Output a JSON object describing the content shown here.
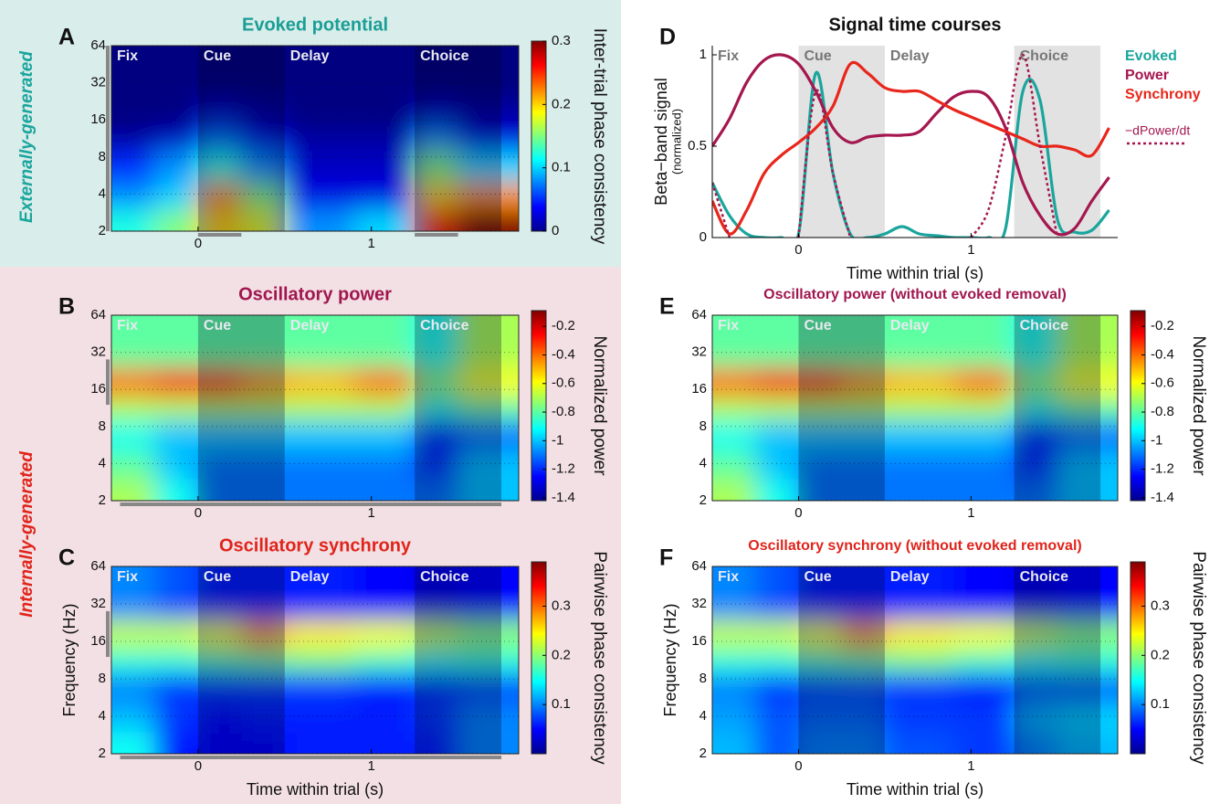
{
  "side_labels": {
    "external": "Externally-generated",
    "internal": "Internally-generated"
  },
  "chart_data": [
    {
      "type": "heatmap",
      "panel": "A",
      "title": "Evoked potential",
      "title_color": "#1a9e96",
      "colorbar_label": "Inter-trial phase consistency",
      "clim": [
        0,
        0.3
      ],
      "cticks": [
        0,
        0.1,
        0.2,
        0.3
      ],
      "xlim": [
        -0.5,
        1.85
      ],
      "xticks": [
        0,
        1
      ],
      "ylim": [
        2,
        64
      ],
      "yticks": [
        2,
        4,
        8,
        16,
        32,
        64
      ],
      "log_y": true,
      "grid": true,
      "epochs": [
        {
          "name": "Fix",
          "start": -0.5,
          "end": 0,
          "shaded": false
        },
        {
          "name": "Cue",
          "start": 0,
          "end": 0.5,
          "shaded": true
        },
        {
          "name": "Delay",
          "start": 0.5,
          "end": 1.25,
          "shaded": false
        },
        {
          "name": "Choice",
          "start": 1.25,
          "end": 1.75,
          "shaded": true
        }
      ],
      "windows": {
        "x": [
          [
            0,
            0.25
          ],
          [
            1.25,
            1.5
          ]
        ],
        "y": [
          2,
          64
        ]
      },
      "xedges": [
        -0.5,
        -0.25,
        0,
        0.25,
        0.5,
        0.9,
        1.25,
        1.5,
        1.85
      ],
      "yedges": [
        2,
        3,
        5,
        9,
        14,
        24,
        64
      ],
      "z": [
        [
          0.12,
          0.15,
          0.2,
          0.18,
          0.08,
          0.1,
          0.25,
          0.3
        ],
        [
          0.08,
          0.1,
          0.22,
          0.15,
          0.03,
          0.03,
          0.2,
          0.22
        ],
        [
          0.05,
          0.08,
          0.12,
          0.08,
          0.02,
          0.02,
          0.15,
          0.1
        ],
        [
          0.01,
          0.02,
          0.07,
          0.03,
          0.01,
          0.01,
          0.08,
          0.03
        ],
        [
          0,
          0,
          0.02,
          0.01,
          0,
          0,
          0.02,
          0.01
        ],
        [
          0,
          0,
          0,
          0,
          0,
          0,
          0,
          0
        ]
      ]
    },
    {
      "type": "heatmap",
      "panel": "B",
      "title": "Oscillatory power",
      "title_color": "#a0174f",
      "colorbar_label": "Normalized power",
      "clim": [
        -1.42,
        -0.09
      ],
      "cticks": [
        -0.2,
        -0.4,
        -0.6,
        -0.8,
        -1,
        -1.2,
        -1.4
      ],
      "xlim": [
        -0.5,
        1.85
      ],
      "xticks": [
        0,
        1
      ],
      "ylim": [
        2,
        64
      ],
      "yticks": [
        2,
        4,
        8,
        16,
        32,
        64
      ],
      "log_y": true,
      "grid": true,
      "epochs": [
        {
          "name": "Fix",
          "start": -0.5,
          "end": 0,
          "shaded": false
        },
        {
          "name": "Cue",
          "start": 0,
          "end": 0.5,
          "shaded": true
        },
        {
          "name": "Delay",
          "start": 0.5,
          "end": 1.25,
          "shaded": false
        },
        {
          "name": "Choice",
          "start": 1.25,
          "end": 1.75,
          "shaded": true
        }
      ],
      "windows": {
        "x": [
          [
            -0.45,
            1.75
          ]
        ],
        "y": [
          12,
          28
        ]
      },
      "xedges": [
        -0.5,
        -0.25,
        0,
        0.25,
        0.5,
        0.9,
        1.25,
        1.5,
        1.85
      ],
      "yedges": [
        2,
        3,
        5,
        9,
        14,
        24,
        64
      ],
      "z": [
        [
          -0.7,
          -0.9,
          -1.1,
          -1.1,
          -1.1,
          -1.1,
          -1.1,
          -1
        ],
        [
          -0.8,
          -1,
          -1.1,
          -1.1,
          -1.1,
          -1.1,
          -1.2,
          -1
        ],
        [
          -0.9,
          -1,
          -1,
          -1,
          -1,
          -1,
          -1.2,
          -1.1
        ],
        [
          -0.7,
          -0.7,
          -0.7,
          -0.7,
          -0.7,
          -0.7,
          -0.9,
          -0.8
        ],
        [
          -0.4,
          -0.25,
          -0.3,
          -0.45,
          -0.5,
          -0.4,
          -0.75,
          -0.6
        ],
        [
          -0.8,
          -0.8,
          -0.8,
          -0.8,
          -0.8,
          -0.8,
          -0.9,
          -0.7
        ]
      ]
    },
    {
      "type": "heatmap",
      "panel": "C",
      "title": "Oscillatory synchrony",
      "title_color": "#e0241b",
      "colorbar_label": "Pairwise phase consistency",
      "clim": [
        0,
        0.39
      ],
      "cticks": [
        0.1,
        0.2,
        0.3
      ],
      "xlabel": "Time within trial (s)",
      "ylabel": "Frequency (Hz)",
      "xlim": [
        -0.5,
        1.85
      ],
      "xticks": [
        0,
        1
      ],
      "ylim": [
        2,
        64
      ],
      "yticks": [
        2,
        4,
        8,
        16,
        32,
        64
      ],
      "log_y": true,
      "grid": true,
      "epochs": [
        {
          "name": "Fix",
          "start": -0.5,
          "end": 0,
          "shaded": false
        },
        {
          "name": "Cue",
          "start": 0,
          "end": 0.5,
          "shaded": true
        },
        {
          "name": "Delay",
          "start": 0.5,
          "end": 1.25,
          "shaded": false
        },
        {
          "name": "Choice",
          "start": 1.25,
          "end": 1.75,
          "shaded": true
        }
      ],
      "windows": {
        "x": [
          [
            -0.45,
            1.75
          ]
        ],
        "y": [
          12,
          28
        ]
      },
      "xedges": [
        -0.5,
        -0.25,
        0,
        0.25,
        0.5,
        0.9,
        1.25,
        1.5,
        1.85
      ],
      "yedges": [
        2,
        3,
        5,
        9,
        14,
        24,
        64
      ],
      "z": [
        [
          0.15,
          0.06,
          0.05,
          0.05,
          0.06,
          0.06,
          0.06,
          0.1
        ],
        [
          0.12,
          0.07,
          0.05,
          0.06,
          0.06,
          0.06,
          0.07,
          0.1
        ],
        [
          0.1,
          0.07,
          0.07,
          0.07,
          0.07,
          0.06,
          0.07,
          0.08
        ],
        [
          0.16,
          0.16,
          0.17,
          0.18,
          0.19,
          0.17,
          0.15,
          0.16
        ],
        [
          0.22,
          0.22,
          0.24,
          0.28,
          0.25,
          0.24,
          0.22,
          0.2
        ],
        [
          0.1,
          0.08,
          0.06,
          0.06,
          0.06,
          0.05,
          0.04,
          0.05
        ]
      ]
    },
    {
      "type": "line",
      "panel": "D",
      "title": "Signal time courses",
      "title_color": "#111111",
      "xlabel": "Time within trial (s)",
      "ylabel": "Beta−band signal",
      "ylabel_sub": "(normalized)",
      "xlim": [
        -0.5,
        1.85
      ],
      "xticks": [
        0,
        1
      ],
      "ylim": [
        0,
        1.05
      ],
      "yticks": [
        0,
        0.5,
        1
      ],
      "epochs": [
        {
          "name": "Fix",
          "start": -0.5,
          "end": 0,
          "shaded": false
        },
        {
          "name": "Cue",
          "start": 0,
          "end": 0.5,
          "shaded": true
        },
        {
          "name": "Delay",
          "start": 0.5,
          "end": 1.25,
          "shaded": false
        },
        {
          "name": "Choice",
          "start": 1.25,
          "end": 1.75,
          "shaded": true
        }
      ],
      "x": [
        -0.5,
        -0.4,
        -0.3,
        -0.2,
        -0.1,
        0,
        0.1,
        0.2,
        0.3,
        0.4,
        0.5,
        0.6,
        0.7,
        0.8,
        0.9,
        1,
        1.1,
        1.2,
        1.3,
        1.4,
        1.5,
        1.6,
        1.7,
        1.8
      ],
      "series": [
        {
          "name": "Evoked",
          "color": "#1aa59d",
          "dashed": false,
          "values": [
            0.3,
            0.12,
            0.02,
            0,
            0,
            0.02,
            0.9,
            0.35,
            0.02,
            0,
            0.02,
            0.06,
            0.02,
            0.01,
            0,
            0,
            0,
            0.05,
            0.8,
            0.75,
            0.1,
            0.03,
            0.04,
            0.15
          ]
        },
        {
          "name": "Power",
          "color": "#a4174f",
          "dashed": false,
          "values": [
            0.5,
            0.65,
            0.85,
            0.97,
            1,
            0.95,
            0.8,
            0.6,
            0.52,
            0.55,
            0.56,
            0.56,
            0.58,
            0.68,
            0.77,
            0.8,
            0.77,
            0.6,
            0.3,
            0.12,
            0.02,
            0.05,
            0.2,
            0.33
          ]
        },
        {
          "name": "Synchrony",
          "color": "#e8261b",
          "dashed": false,
          "values": [
            0.2,
            0.02,
            0.15,
            0.35,
            0.45,
            0.52,
            0.6,
            0.72,
            0.95,
            0.9,
            0.82,
            0.8,
            0.8,
            0.75,
            0.7,
            0.66,
            0.62,
            0.58,
            0.54,
            0.5,
            0.5,
            0.48,
            0.45,
            0.6
          ]
        },
        {
          "name": "−dPower/dt",
          "color": "#a4174f",
          "dashed": true,
          "values": [
            0.3,
            0,
            null,
            null,
            null,
            0,
            0.8,
            0.35,
            0,
            null,
            null,
            null,
            null,
            null,
            null,
            0,
            0.15,
            0.55,
            1,
            0.5,
            0,
            null,
            null,
            null
          ]
        }
      ]
    },
    {
      "type": "heatmap",
      "panel": "E",
      "title": "Oscillatory power (without evoked removal)",
      "title_color": "#a0174f",
      "colorbar_label": "Normalized power",
      "clim": [
        -1.42,
        -0.09
      ],
      "cticks": [
        -0.2,
        -0.4,
        -0.6,
        -0.8,
        -1,
        -1.2,
        -1.4
      ],
      "xlim": [
        -0.5,
        1.85
      ],
      "xticks": [
        0,
        1
      ],
      "ylim": [
        2,
        64
      ],
      "yticks": [
        2,
        4,
        8,
        16,
        32,
        64
      ],
      "log_y": true,
      "grid": true,
      "epochs": [
        {
          "name": "Fix",
          "start": -0.5,
          "end": 0,
          "shaded": false
        },
        {
          "name": "Cue",
          "start": 0,
          "end": 0.5,
          "shaded": true
        },
        {
          "name": "Delay",
          "start": 0.5,
          "end": 1.25,
          "shaded": false
        },
        {
          "name": "Choice",
          "start": 1.25,
          "end": 1.75,
          "shaded": true
        }
      ],
      "xedges": [
        -0.5,
        -0.25,
        0,
        0.25,
        0.5,
        0.9,
        1.25,
        1.5,
        1.85
      ],
      "yedges": [
        2,
        3,
        5,
        9,
        14,
        24,
        64
      ],
      "z": [
        [
          -0.7,
          -0.9,
          -1.1,
          -1.1,
          -1.1,
          -1.1,
          -1.1,
          -1
        ],
        [
          -0.8,
          -1,
          -1.1,
          -1.1,
          -1.1,
          -1.1,
          -1.2,
          -1
        ],
        [
          -0.9,
          -1,
          -1,
          -1,
          -1,
          -1,
          -1.2,
          -1.1
        ],
        [
          -0.7,
          -0.7,
          -0.7,
          -0.7,
          -0.7,
          -0.7,
          -0.9,
          -0.8
        ],
        [
          -0.4,
          -0.25,
          -0.3,
          -0.45,
          -0.5,
          -0.4,
          -0.75,
          -0.6
        ],
        [
          -0.8,
          -0.8,
          -0.8,
          -0.8,
          -0.8,
          -0.8,
          -0.9,
          -0.7
        ]
      ]
    },
    {
      "type": "heatmap",
      "panel": "F",
      "title": "Oscillatory synchrony (without evoked removal)",
      "title_color": "#e0241b",
      "colorbar_label": "Pairwise phase consistency",
      "clim": [
        0,
        0.39
      ],
      "cticks": [
        0.1,
        0.2,
        0.3
      ],
      "xlabel": "Time within trial (s)",
      "ylabel": "Frequency (Hz)",
      "xlim": [
        -0.5,
        1.85
      ],
      "xticks": [
        0,
        1
      ],
      "ylim": [
        2,
        64
      ],
      "yticks": [
        2,
        4,
        8,
        16,
        32,
        64
      ],
      "log_y": true,
      "grid": true,
      "epochs": [
        {
          "name": "Fix",
          "start": -0.5,
          "end": 0,
          "shaded": false
        },
        {
          "name": "Cue",
          "start": 0,
          "end": 0.5,
          "shaded": true
        },
        {
          "name": "Delay",
          "start": 0.5,
          "end": 1.25,
          "shaded": false
        },
        {
          "name": "Choice",
          "start": 1.25,
          "end": 1.75,
          "shaded": true
        }
      ],
      "xedges": [
        -0.5,
        -0.25,
        0,
        0.25,
        0.5,
        0.9,
        1.25,
        1.5,
        1.85
      ],
      "yedges": [
        2,
        3,
        5,
        9,
        14,
        24,
        64
      ],
      "z": [
        [
          0.12,
          0.08,
          0.1,
          0.1,
          0.08,
          0.07,
          0.1,
          0.12
        ],
        [
          0.11,
          0.08,
          0.09,
          0.09,
          0.07,
          0.07,
          0.12,
          0.13
        ],
        [
          0.1,
          0.07,
          0.08,
          0.08,
          0.07,
          0.06,
          0.09,
          0.09
        ],
        [
          0.16,
          0.16,
          0.17,
          0.18,
          0.19,
          0.17,
          0.15,
          0.16
        ],
        [
          0.22,
          0.22,
          0.24,
          0.28,
          0.25,
          0.24,
          0.22,
          0.2
        ],
        [
          0.1,
          0.08,
          0.06,
          0.06,
          0.06,
          0.05,
          0.04,
          0.05
        ]
      ]
    }
  ]
}
